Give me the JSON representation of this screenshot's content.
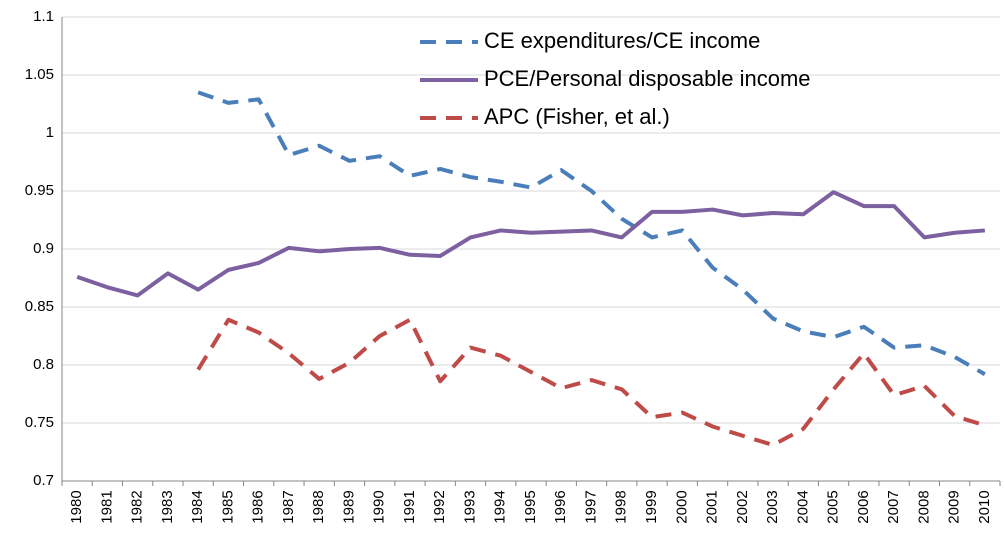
{
  "chart_data": {
    "type": "line",
    "categories": [
      "1980",
      "1981",
      "1982",
      "1983",
      "1984",
      "1985",
      "1986",
      "1987",
      "1988",
      "1989",
      "1990",
      "1991",
      "1992",
      "1993",
      "1994",
      "1995",
      "1996",
      "1997",
      "1998",
      "1999",
      "2000",
      "2001",
      "2002",
      "2003",
      "2004",
      "2005",
      "2006",
      "2007",
      "2008",
      "2009",
      "2010"
    ],
    "series": [
      {
        "name": "CE expenditures/CE income",
        "color": "#4a7ebb",
        "dashed": true,
        "values": [
          null,
          null,
          null,
          null,
          1.035,
          1.026,
          1.029,
          0.981,
          0.989,
          0.976,
          0.98,
          0.963,
          0.969,
          0.962,
          0.958,
          0.953,
          0.968,
          0.95,
          0.926,
          0.91,
          0.916,
          0.884,
          0.865,
          0.84,
          0.829,
          0.824,
          0.833,
          0.815,
          0.817,
          0.807,
          0.792
        ]
      },
      {
        "name": "PCE/Personal disposable income",
        "color": "#7d60a0",
        "dashed": false,
        "values": [
          0.876,
          0.867,
          0.86,
          0.879,
          0.865,
          0.882,
          0.888,
          0.901,
          0.898,
          0.9,
          0.901,
          0.895,
          0.894,
          0.91,
          0.916,
          0.914,
          0.915,
          0.916,
          0.91,
          0.932,
          0.932,
          0.934,
          0.929,
          0.931,
          0.93,
          0.949,
          0.937,
          0.937,
          0.91,
          0.914,
          0.916
        ]
      },
      {
        "name": "APC (Fisher, et al.)",
        "color": "#be4b48",
        "dashed": true,
        "values": [
          null,
          null,
          null,
          null,
          0.796,
          0.839,
          0.828,
          0.81,
          0.788,
          0.802,
          0.825,
          0.839,
          0.786,
          0.815,
          0.808,
          0.794,
          0.78,
          0.787,
          0.779,
          0.755,
          0.759,
          0.747,
          0.739,
          0.731,
          0.745,
          0.779,
          0.81,
          0.774,
          0.782,
          0.756,
          0.748
        ]
      }
    ],
    "ylim": [
      0.7,
      1.1
    ],
    "yticks": [
      0.7,
      0.75,
      0.8,
      0.85,
      0.9,
      0.95,
      1,
      1.05,
      1.1
    ],
    "grid": true,
    "legend": "top"
  }
}
